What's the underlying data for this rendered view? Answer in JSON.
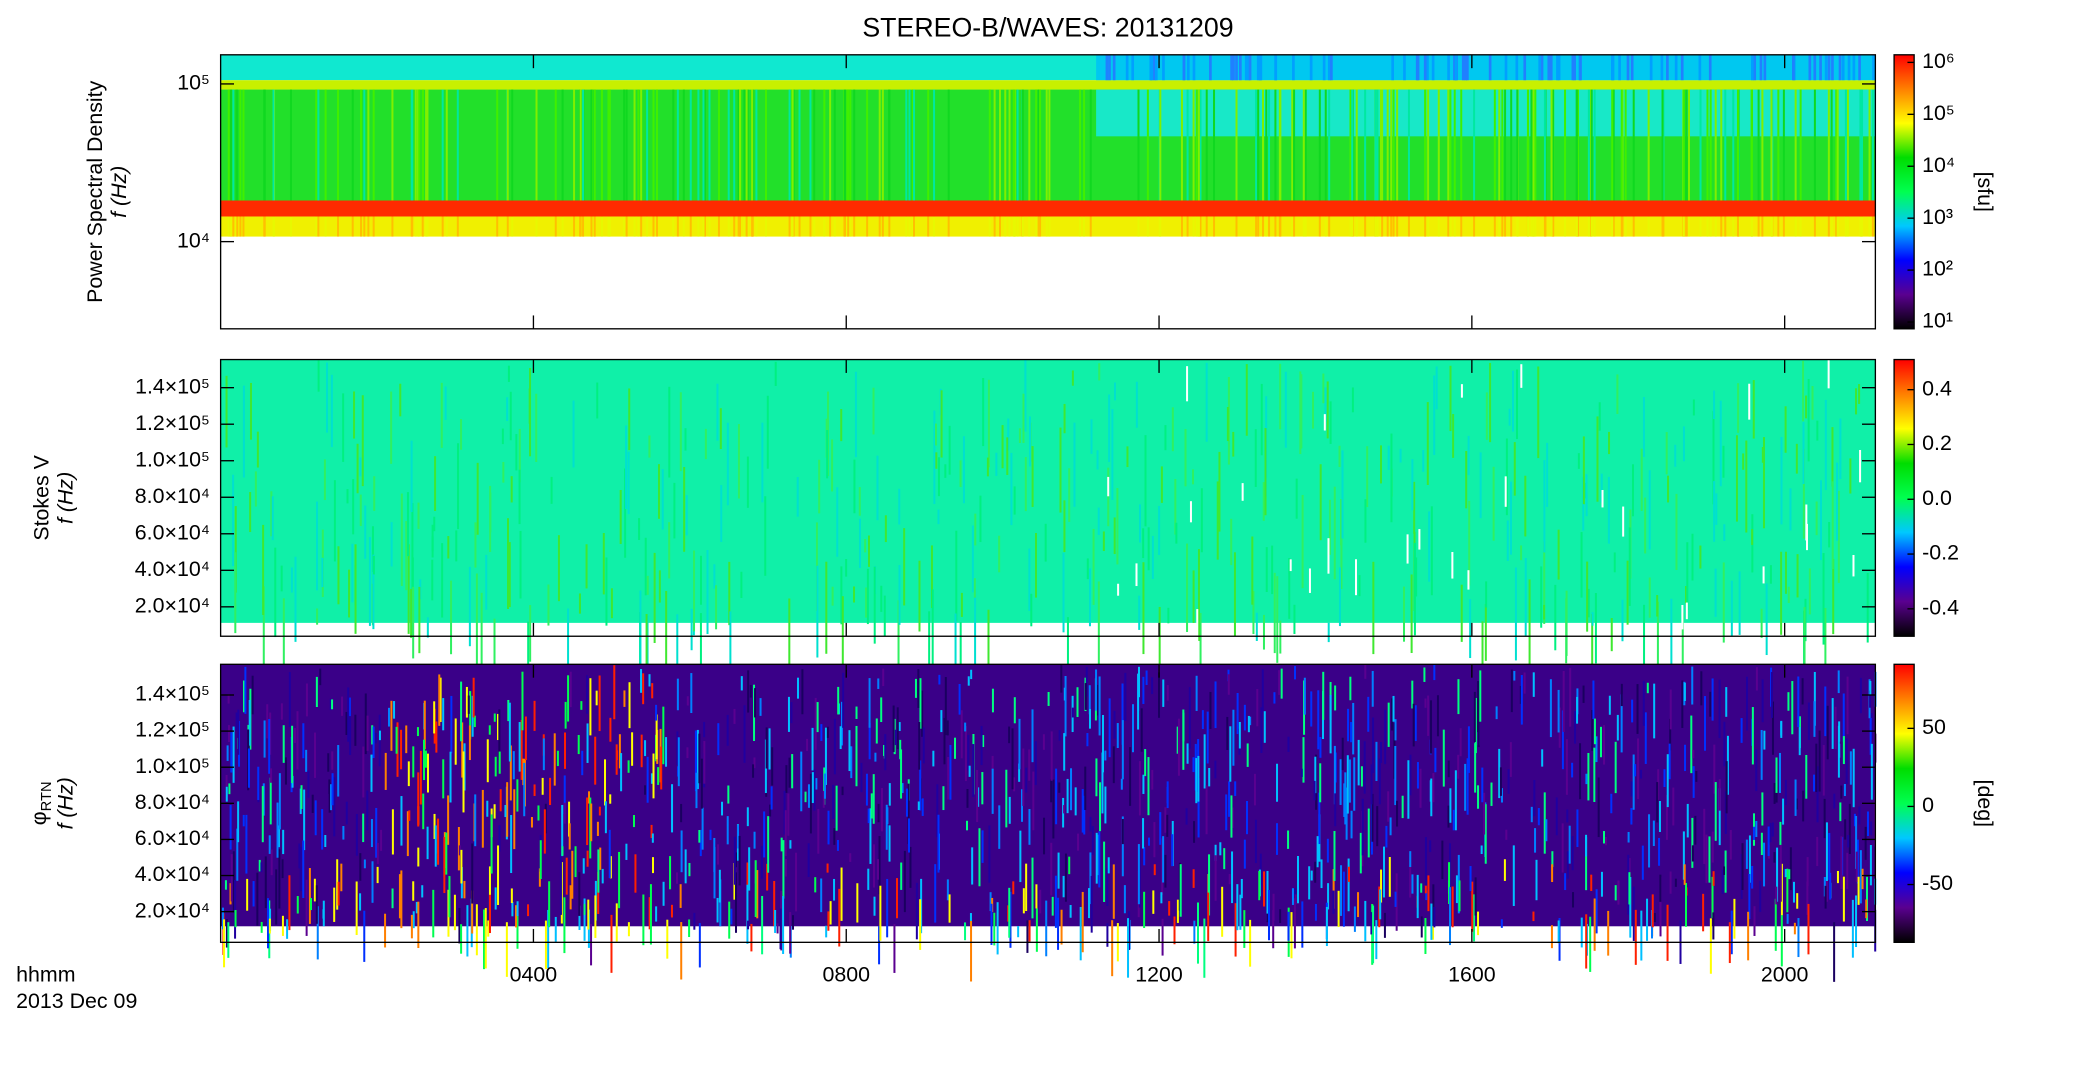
{
  "chart_data": [
    {
      "type": "spectrogram",
      "title": "STEREO-B/WAVES: 20131209",
      "ylabel": "Power Spectral Density",
      "ylabel2": "f (Hz)",
      "ylog": true,
      "ylim": [
        2800,
        153000
      ],
      "yticks": [
        {
          "value": 10000,
          "label": "10⁴"
        },
        {
          "value": 100000,
          "label": "10⁵"
        }
      ],
      "clog": true,
      "clim": [
        7.4,
        1400000
      ],
      "cticks": [
        {
          "value": 10,
          "label": "10¹"
        },
        {
          "value": 100,
          "label": "10²"
        },
        {
          "value": 1000,
          "label": "10³"
        },
        {
          "value": 10000,
          "label": "10⁴"
        },
        {
          "value": 100000,
          "label": "10⁵"
        },
        {
          "value": 1000000,
          "label": "10⁶"
        }
      ],
      "clabel": "[sfu]",
      "colormap": [
        "#000000",
        "#5a0090",
        "#0000ff",
        "#00c8ff",
        "#00ff50",
        "#00dd00",
        "#ffff00",
        "#ff8000",
        "#ff0000"
      ]
    },
    {
      "type": "spectrogram",
      "ylabel": "Stokes V",
      "ylabel2": "f (Hz)",
      "ylog": false,
      "ylim": [
        3900,
        155400
      ],
      "yticks": [
        {
          "value": 20000,
          "label": "2.0×10⁴"
        },
        {
          "value": 40000,
          "label": "4.0×10⁴"
        },
        {
          "value": 60000,
          "label": "6.0×10⁴"
        },
        {
          "value": 80000,
          "label": "8.0×10⁴"
        },
        {
          "value": 100000,
          "label": "1.0×10⁵"
        },
        {
          "value": 120000,
          "label": "1.2×10⁵"
        },
        {
          "value": 140000,
          "label": "1.4×10⁵"
        }
      ],
      "clog": false,
      "clim": [
        -0.5,
        0.51
      ],
      "cticks": [
        -0.4,
        -0.2,
        {
          "value": 0,
          "label": "0.0"
        },
        0.2,
        0.4
      ],
      "colormap": [
        "#000000",
        "#5a0090",
        "#0000ff",
        "#00c8ff",
        "#00ff50",
        "#00dd00",
        "#ffff00",
        "#ff8000",
        "#ff0000"
      ]
    },
    {
      "type": "spectrogram",
      "ylabel_symbol": "φ",
      "ylabel_sub": "RTN",
      "ylabel2": "f (Hz)",
      "ylog": false,
      "ylim": [
        3000,
        157000
      ],
      "yticks": [
        {
          "value": 20000,
          "label": "2.0×10⁴"
        },
        {
          "value": 40000,
          "label": "4.0×10⁴"
        },
        {
          "value": 60000,
          "label": "6.0×10⁴"
        },
        {
          "value": 80000,
          "label": "8.0×10⁴"
        },
        {
          "value": 100000,
          "label": "1.0×10⁵"
        },
        {
          "value": 120000,
          "label": "1.2×10⁵"
        },
        {
          "value": 140000,
          "label": "1.4×10⁵"
        }
      ],
      "clog": false,
      "clim": [
        -87,
        91
      ],
      "cticks": [
        -50,
        0,
        50
      ],
      "clabel": "[deg]",
      "colormap": [
        "#000000",
        "#5a0090",
        "#0000ff",
        "#00c8ff",
        "#00ff50",
        "#00dd00",
        "#ffff00",
        "#ff8000",
        "#ff0000"
      ],
      "xlabel": "hhmm",
      "date": "2013 Dec 09",
      "xlim": [
        0,
        21.16
      ],
      "xticks": [
        {
          "value": 4,
          "label": "0400"
        },
        {
          "value": 8,
          "label": "0800"
        },
        {
          "value": 12,
          "label": "1200"
        },
        {
          "value": 16,
          "label": "1600"
        },
        {
          "value": 20,
          "label": "2000"
        }
      ]
    }
  ]
}
